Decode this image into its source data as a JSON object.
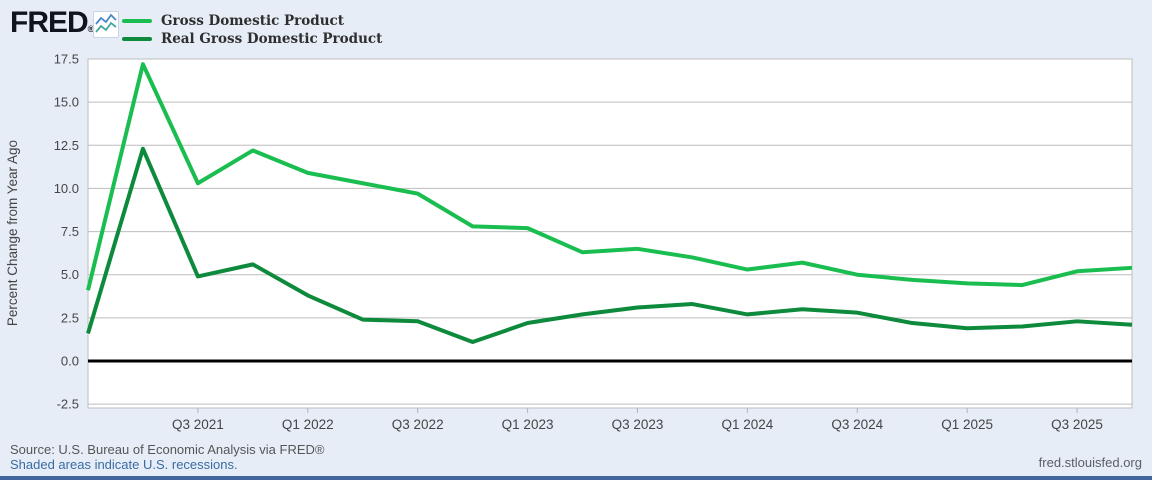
{
  "header": {
    "logo": "FRED",
    "registered": "®"
  },
  "chart_data": {
    "type": "line",
    "ylabel": "Percent Change from Year Ago",
    "grid": "horizontal",
    "legend_position": "top-left",
    "ylim": [
      -2.7,
      17.5
    ],
    "categories": [
      "Q1 2021",
      "Q2 2021",
      "Q3 2021",
      "Q4 2021",
      "Q1 2022",
      "Q2 2022",
      "Q3 2022",
      "Q4 2022",
      "Q1 2023",
      "Q2 2023",
      "Q3 2023",
      "Q4 2023",
      "Q1 2024",
      "Q2 2024",
      "Q3 2024",
      "Q4 2024",
      "Q1 2025",
      "Q2 2025",
      "Q3 2025",
      "Q4 2025"
    ],
    "series": [
      {
        "name": "Gross Domestic Product",
        "color": "#1abe50",
        "values": [
          4.1,
          17.2,
          10.3,
          12.2,
          10.9,
          10.3,
          9.7,
          7.8,
          7.7,
          6.3,
          6.5,
          6.0,
          5.3,
          5.7,
          5.0,
          4.7,
          4.5,
          4.4,
          5.2,
          5.4
        ]
      },
      {
        "name": "Real Gross Domestic Product",
        "color": "#0d8a3c",
        "values": [
          1.6,
          12.3,
          4.9,
          5.6,
          3.8,
          2.4,
          2.3,
          1.1,
          2.2,
          2.7,
          3.1,
          3.3,
          2.7,
          3.0,
          2.8,
          2.2,
          1.9,
          2.0,
          2.3,
          2.1
        ]
      }
    ],
    "y_ticks": [
      {
        "value": 17.5,
        "label": "17.5"
      },
      {
        "value": 15.0,
        "label": "15.0"
      },
      {
        "value": 12.5,
        "label": "12.5"
      },
      {
        "value": 10.0,
        "label": "10.0"
      },
      {
        "value": 7.5,
        "label": "7.5"
      },
      {
        "value": 5.0,
        "label": "5.0"
      },
      {
        "value": 2.5,
        "label": "2.5"
      },
      {
        "value": 0.0,
        "label": "0.0"
      },
      {
        "value": -2.5,
        "label": "-2.5"
      }
    ],
    "x_ticks": [
      {
        "index": 2,
        "label": "Q3 2021"
      },
      {
        "index": 4,
        "label": "Q1 2022"
      },
      {
        "index": 6,
        "label": "Q3 2022"
      },
      {
        "index": 8,
        "label": "Q1 2023"
      },
      {
        "index": 10,
        "label": "Q3 2023"
      },
      {
        "index": 12,
        "label": "Q1 2024"
      },
      {
        "index": 14,
        "label": "Q3 2024"
      },
      {
        "index": 16,
        "label": "Q1 2025"
      },
      {
        "index": 18,
        "label": "Q3 2025"
      }
    ],
    "zero_line_color": "#000000",
    "gridline_color": "#bdbdbd",
    "plot_background": "#ffffff"
  },
  "footer": {
    "source": "Source: U.S. Bureau of Economic Analysis via FRED®",
    "recessions_note": "Shaded areas indicate U.S. recessions.",
    "site": "fred.stlouisfed.org"
  }
}
